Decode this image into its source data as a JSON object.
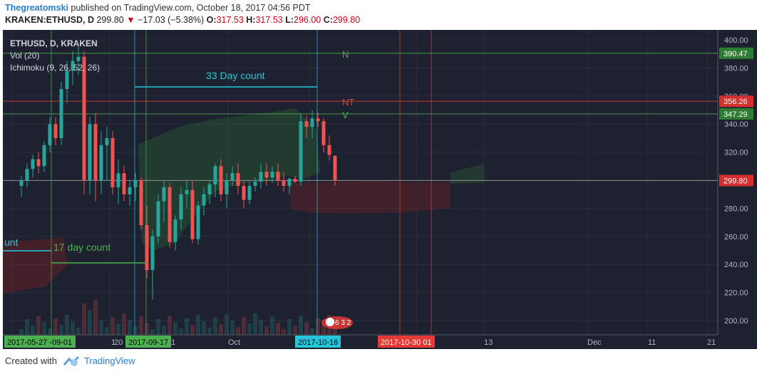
{
  "header": {
    "author": "Thegreatomski",
    "published_text": "published on TradingView.com, October 18, 2017 04:56 PDT",
    "symbol": "KRAKEN:ETHUSD, D",
    "last": "299.80",
    "change_arrow": "▼",
    "change": "−17.03 (−5.38%)",
    "o_label": "O:",
    "o_value": "317.53",
    "h_label": "H:",
    "h_value": "317.53",
    "l_label": "L:",
    "l_value": "296.00",
    "c_label": "C:",
    "c_value": "299.80"
  },
  "legend": {
    "title": "ETHUSD, D, KRAKEN",
    "vol": "Vol (20)",
    "ichimoku": "Ichimoku (9, 26, 52, 26)"
  },
  "annotations": {
    "count33": "33 Day count",
    "count17": "17 day count",
    "count_left": "unt",
    "N": "N",
    "NT": "NT",
    "V": "V",
    "events_badge": "6 3 2"
  },
  "price_axis": {
    "ticks": [
      "400.00",
      "380.00",
      "360.00",
      "340.00",
      "320.00",
      "300.00",
      "280.00",
      "260.00",
      "240.00",
      "220.00",
      "200.00"
    ],
    "tags": [
      {
        "text": "390.47",
        "color": "#2e7d32"
      },
      {
        "text": "356.26",
        "color": "#d32f2f"
      },
      {
        "text": "347.29",
        "color": "#2e7d32"
      },
      {
        "text": "299.80",
        "color": "#d32f2f"
      }
    ]
  },
  "time_axis": {
    "labels": [
      "1",
      "20",
      "1",
      "Oct",
      "13",
      "Dec",
      "11",
      "21"
    ],
    "tags": [
      "2017-05-27 -09-01",
      "2017-09-17",
      "2017-10-16",
      "2017-10-30 01"
    ]
  },
  "colors": {
    "up": "#26a69a",
    "down": "#ef5350",
    "bg": "#1e2230",
    "grid": "#2a2e3c",
    "cyan": "#26c6da",
    "green": "#4caf50",
    "red": "#e53935"
  },
  "footer": {
    "created": "Created with",
    "brand": "TradingView"
  },
  "chart_data": {
    "type": "candlestick",
    "title": "ETHUSD, D, KRAKEN",
    "ylim": [
      190,
      405
    ],
    "ohlc": [
      [
        296,
        303,
        288,
        300
      ],
      [
        300,
        312,
        295,
        308
      ],
      [
        308,
        318,
        302,
        315
      ],
      [
        315,
        320,
        305,
        310
      ],
      [
        310,
        328,
        306,
        325
      ],
      [
        325,
        345,
        320,
        340
      ],
      [
        340,
        345,
        325,
        330
      ],
      [
        330,
        370,
        325,
        365
      ],
      [
        365,
        385,
        355,
        378
      ],
      [
        378,
        392,
        368,
        385
      ],
      [
        385,
        395,
        375,
        388
      ],
      [
        388,
        392,
        290,
        300
      ],
      [
        300,
        345,
        290,
        340
      ],
      [
        340,
        348,
        285,
        300
      ],
      [
        300,
        335,
        290,
        325
      ],
      [
        325,
        338,
        300,
        330
      ],
      [
        330,
        335,
        290,
        295
      ],
      [
        295,
        315,
        283,
        305
      ],
      [
        305,
        310,
        285,
        290
      ],
      [
        290,
        300,
        282,
        295
      ],
      [
        295,
        305,
        285,
        300
      ],
      [
        300,
        302,
        265,
        268
      ],
      [
        268,
        282,
        230,
        236
      ],
      [
        236,
        265,
        215,
        260
      ],
      [
        260,
        290,
        255,
        285
      ],
      [
        285,
        300,
        270,
        295
      ],
      [
        295,
        298,
        252,
        256
      ],
      [
        256,
        275,
        250,
        272
      ],
      [
        272,
        295,
        265,
        290
      ],
      [
        290,
        300,
        280,
        293
      ],
      [
        293,
        300,
        255,
        258
      ],
      [
        258,
        285,
        254,
        282
      ],
      [
        282,
        295,
        275,
        290
      ],
      [
        290,
        300,
        283,
        297
      ],
      [
        297,
        312,
        288,
        310
      ],
      [
        310,
        315,
        285,
        290
      ],
      [
        290,
        305,
        280,
        300
      ],
      [
        300,
        310,
        296,
        305
      ],
      [
        305,
        312,
        290,
        296
      ],
      [
        296,
        300,
        280,
        286
      ],
      [
        286,
        299,
        283,
        296
      ],
      [
        296,
        302,
        292,
        299
      ],
      [
        299,
        312,
        294,
        306
      ],
      [
        306,
        312,
        296,
        302
      ],
      [
        302,
        310,
        298,
        306
      ],
      [
        306,
        312,
        296,
        300
      ],
      [
        300,
        306,
        292,
        296
      ],
      [
        296,
        302,
        290,
        301
      ],
      [
        301,
        303,
        298,
        299
      ],
      [
        299,
        348,
        296,
        342
      ],
      [
        342,
        346,
        330,
        338
      ],
      [
        338,
        350,
        330,
        344
      ],
      [
        344,
        348,
        338,
        342
      ],
      [
        342,
        344,
        320,
        325
      ],
      [
        325,
        332,
        314,
        318
      ],
      [
        317.53,
        317.53,
        296,
        299.8
      ]
    ],
    "horizontal_levels": [
      {
        "label": "N",
        "value": 390.47
      },
      {
        "label": "NT",
        "value": 356.26
      },
      {
        "label": "V",
        "value": 347.29
      },
      {
        "label": "last",
        "value": 299.8
      }
    ]
  }
}
